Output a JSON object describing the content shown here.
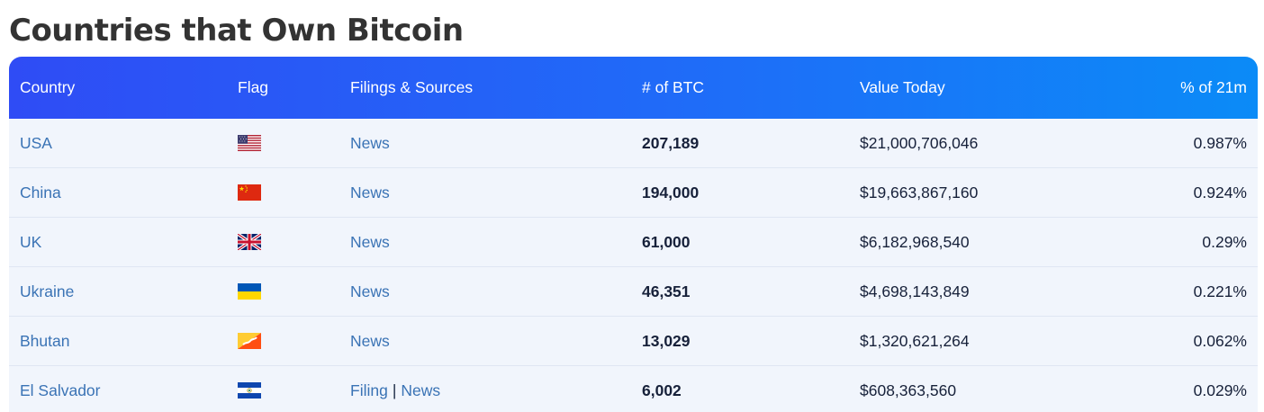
{
  "page": {
    "title": "Countries that Own Bitcoin"
  },
  "table": {
    "headers": {
      "country": "Country",
      "flag": "Flag",
      "sources": "Filings & Sources",
      "btc": "# of BTC",
      "value": "Value Today",
      "pct": "% of 21m"
    },
    "rows": [
      {
        "country": "USA",
        "flag_icon": "usa-flag-icon",
        "filing": "",
        "news": "News",
        "btc": "207,189",
        "value": "$21,000,706,046",
        "pct": "0.987%"
      },
      {
        "country": "China",
        "flag_icon": "china-flag-icon",
        "filing": "",
        "news": "News",
        "btc": "194,000",
        "value": "$19,663,867,160",
        "pct": "0.924%"
      },
      {
        "country": "UK",
        "flag_icon": "uk-flag-icon",
        "filing": "",
        "news": "News",
        "btc": "61,000",
        "value": "$6,182,968,540",
        "pct": "0.29%"
      },
      {
        "country": "Ukraine",
        "flag_icon": "ukraine-flag-icon",
        "filing": "",
        "news": "News",
        "btc": "46,351",
        "value": "$4,698,143,849",
        "pct": "0.221%"
      },
      {
        "country": "Bhutan",
        "flag_icon": "bhutan-flag-icon",
        "filing": "",
        "news": "News",
        "btc": "13,029",
        "value": "$1,320,621,264",
        "pct": "0.062%"
      },
      {
        "country": "El Salvador",
        "flag_icon": "el-salvador-flag-icon",
        "filing": "Filing",
        "separator": "|",
        "news": "News",
        "btc": "6,002",
        "value": "$608,363,560",
        "pct": "0.029%"
      }
    ]
  },
  "colors": {
    "header_start": "#2f4cf5",
    "header_end": "#0b8bf7",
    "link": "#3a73b5",
    "row_bg": "#f1f5fc"
  }
}
